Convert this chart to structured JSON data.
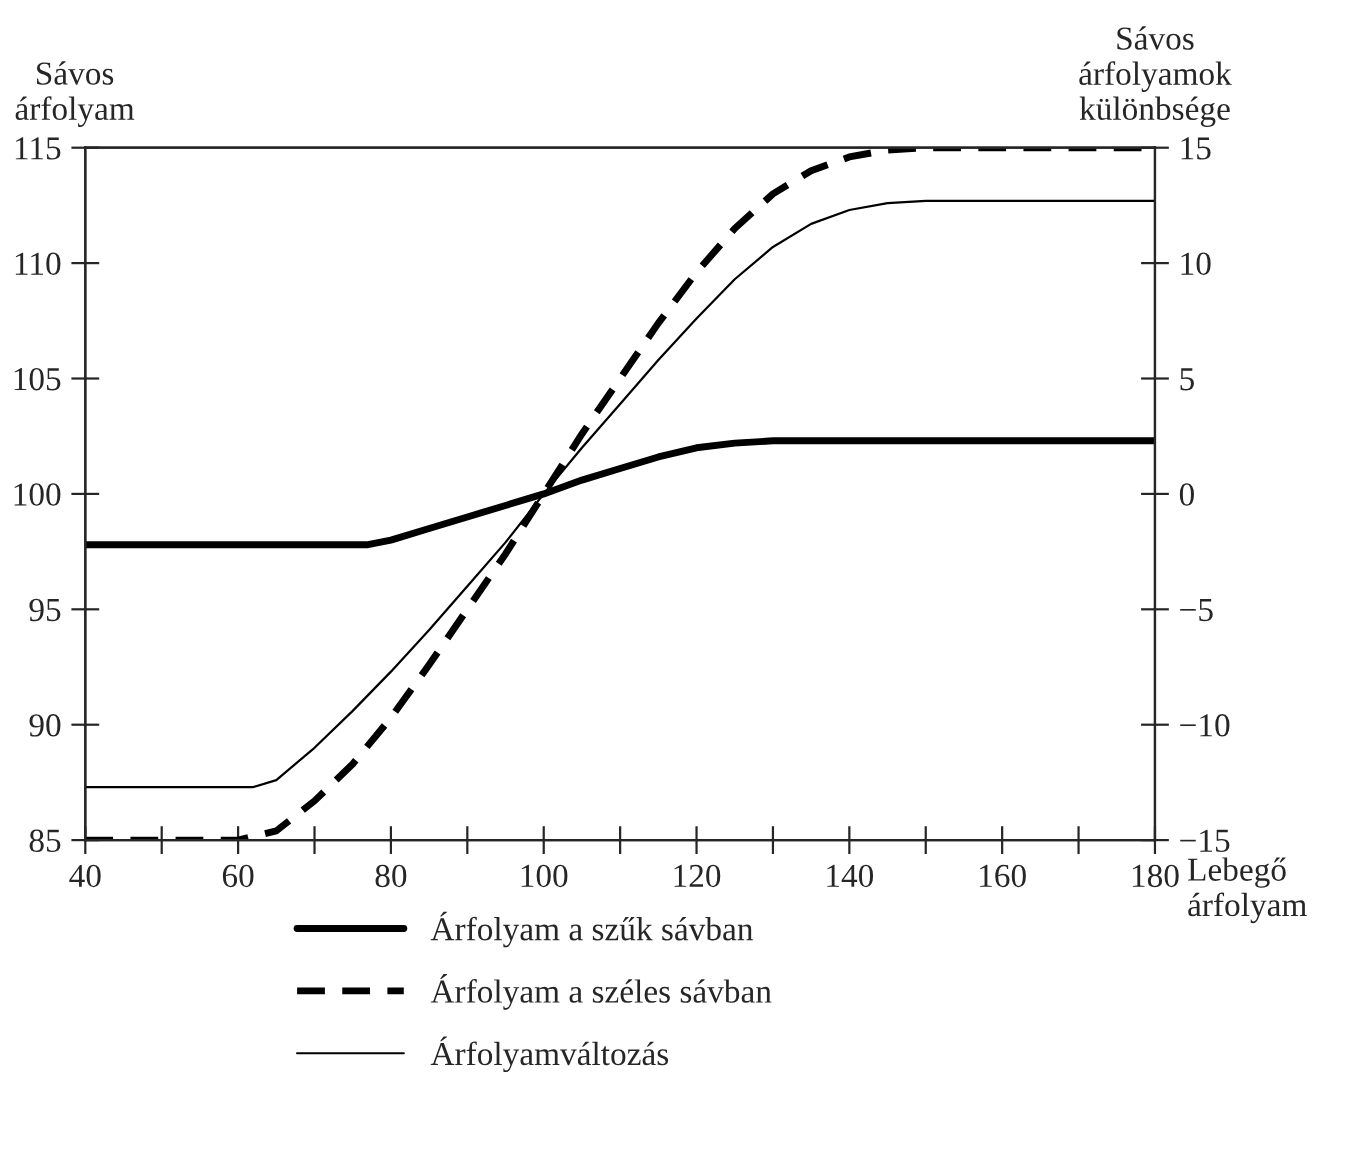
{
  "chart_data": {
    "type": "line",
    "ylabel": "Sávos\nárfolyam",
    "y2label": "Sávos\nárfolyamok\nkülönbsége",
    "xlabel": "Lebegő\nárfolyam",
    "xlim": [
      40,
      180
    ],
    "xticks": [
      40,
      {
        "value": 50,
        "label": null
      },
      60,
      {
        "value": 70,
        "label": null
      },
      80,
      {
        "value": 90,
        "label": null
      },
      100,
      {
        "value": 110,
        "label": null
      },
      120,
      {
        "value": 130,
        "label": null
      },
      140,
      {
        "value": 150,
        "label": null
      },
      160,
      {
        "value": 170,
        "label": null
      },
      180
    ],
    "ylim": [
      85,
      115
    ],
    "yticks": [
      85,
      90,
      95,
      100,
      105,
      110,
      115
    ],
    "y2lim": [
      -15,
      15
    ],
    "y2ticks": [
      {
        "value": -15,
        "label": "−15"
      },
      {
        "value": -10,
        "label": "−10"
      },
      {
        "value": -5,
        "label": "−5"
      },
      0,
      5,
      10,
      15
    ],
    "grid": false,
    "legend": "bottom",
    "marker": "none",
    "series": [
      {
        "name": "Árfolyam a szűk sávban",
        "color": "#000000",
        "line_style": "solid",
        "x": [
          40,
          77,
          80,
          85,
          90,
          95,
          100,
          105,
          110,
          115,
          120,
          125,
          130,
          180
        ],
        "values": [
          97.8,
          97.8,
          98.0,
          98.5,
          99.0,
          99.5,
          100,
          100.6,
          101.1,
          101.6,
          102.0,
          102.2,
          102.3,
          102.3
        ]
      },
      {
        "name": "Árfolyam a széles sávban",
        "color": "#000000",
        "line_style": "dashed",
        "x": [
          40,
          60,
          65,
          70,
          75,
          80,
          85,
          90,
          95,
          100,
          105,
          110,
          115,
          120,
          125,
          130,
          135,
          140,
          145,
          150,
          180
        ],
        "values": [
          85,
          85,
          85.4,
          86.7,
          88.3,
          90.3,
          92.6,
          95.0,
          97.4,
          100,
          102.6,
          105.0,
          107.4,
          109.6,
          111.5,
          113.0,
          114.0,
          114.6,
          114.9,
          115,
          115
        ]
      },
      {
        "name": "Árfolyamváltozás",
        "color": "#000000",
        "line_style": "solid",
        "axis": "y2",
        "x": [
          40,
          62,
          65,
          70,
          75,
          80,
          85,
          90,
          95,
          100,
          105,
          110,
          115,
          120,
          125,
          130,
          135,
          140,
          145,
          150,
          180
        ],
        "values": [
          -12.7,
          -12.7,
          -12.4,
          -11.0,
          -9.4,
          -7.7,
          -5.9,
          -4.0,
          -2.1,
          0,
          2.0,
          3.9,
          5.8,
          7.6,
          9.3,
          10.7,
          11.7,
          12.3,
          12.6,
          12.7,
          12.7
        ]
      }
    ]
  }
}
